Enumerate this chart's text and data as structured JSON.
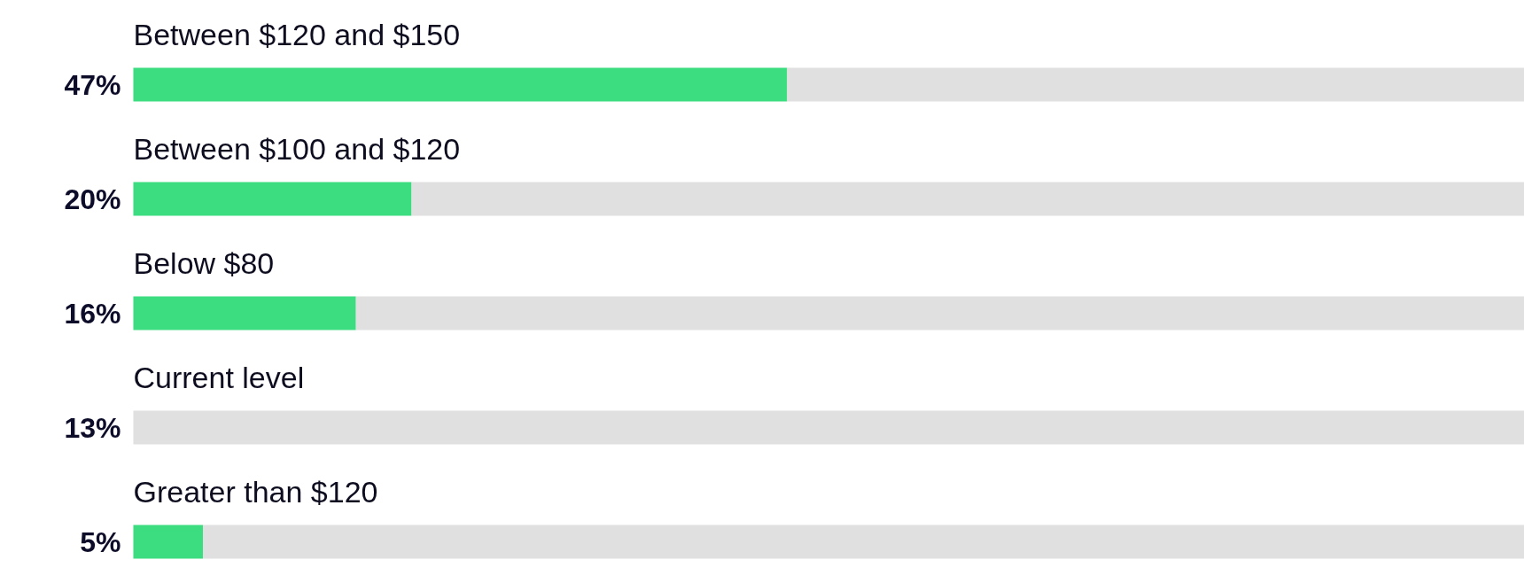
{
  "chart_data": {
    "type": "bar",
    "orientation": "horizontal",
    "stacked": true,
    "categories": [
      "Between $120 and $150",
      "Between $100 and $120",
      "Below $80",
      "Current level",
      "Greater than $120"
    ],
    "series": [
      {
        "color": "#3cdc80",
        "values": [
          47,
          20,
          16,
          null,
          5
        ],
        "value_labels": [
          "47%",
          "20%",
          "16%",
          "13%",
          "5%"
        ]
      },
      {
        "color": "#e0e0e0",
        "values": [
          53,
          80,
          84,
          100,
          95
        ]
      }
    ],
    "xlim": [
      0,
      100
    ],
    "tick_labels": false
  }
}
